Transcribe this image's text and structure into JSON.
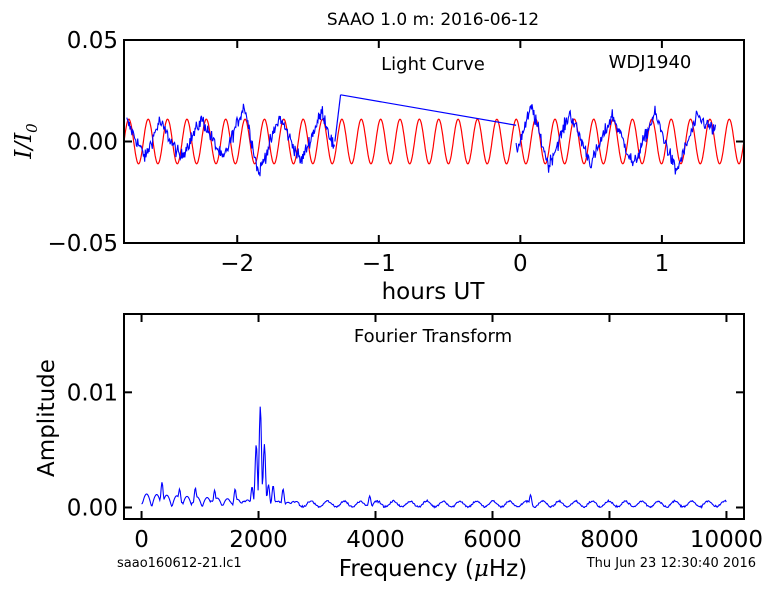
{
  "figure": {
    "title": "SAAO 1.0 m:  2016-06-12",
    "footer_left": "saao160612-21.lc1",
    "footer_right": "Thu Jun 23 12:30:40 2016"
  },
  "colors": {
    "data": "#0000ff",
    "model": "#ff0000",
    "axes": "#000000"
  },
  "chart_data": [
    {
      "type": "line",
      "panel": "light-curve",
      "title": "",
      "annotations": [
        "Light Curve",
        "WDJ1940"
      ],
      "xlabel": "hours UT",
      "ylabel": "I/I0",
      "ylabel_display": {
        "base": "I/I",
        "subscript": "0"
      },
      "xlim": [
        -2.8,
        1.58
      ],
      "ylim": [
        -0.05,
        0.05
      ],
      "xticks": [
        -2,
        -1,
        0,
        1
      ],
      "xtick_labels": [
        "−2",
        "−1",
        "0",
        "1"
      ],
      "yticks": [
        -0.05,
        0.0,
        0.05
      ],
      "ytick_labels": [
        "−0.05",
        "0.00",
        "0.05"
      ],
      "grid": false,
      "series": [
        {
          "role": "observed",
          "color": "#0000ff",
          "segments": [
            [
              -2.78,
              -1.31
            ],
            [
              -0.03,
              1.38
            ]
          ],
          "gap_connector": {
            "x": [
              -1.27,
              -0.03
            ],
            "y": [
              0.023,
              0.008
            ]
          },
          "noise_amplitude": 0.006,
          "points": [
            [
              -2.78,
              0.01
            ],
            [
              -2.65,
              -0.008
            ],
            [
              -2.55,
              0.01
            ],
            [
              -2.4,
              -0.008
            ],
            [
              -2.25,
              0.011
            ],
            [
              -2.1,
              -0.009
            ],
            [
              -1.95,
              0.018
            ],
            [
              -1.85,
              -0.016
            ],
            [
              -1.7,
              0.012
            ],
            [
              -1.55,
              -0.01
            ],
            [
              -1.4,
              0.015
            ],
            [
              -1.31,
              -0.005
            ],
            [
              -0.03,
              -0.005
            ],
            [
              0.08,
              0.017
            ],
            [
              0.2,
              -0.012
            ],
            [
              0.35,
              0.014
            ],
            [
              0.5,
              -0.011
            ],
            [
              0.65,
              0.013
            ],
            [
              0.8,
              -0.012
            ],
            [
              0.95,
              0.014
            ],
            [
              1.1,
              -0.015
            ],
            [
              1.25,
              0.012
            ],
            [
              1.38,
              0.005
            ]
          ]
        },
        {
          "role": "model",
          "color": "#ff0000",
          "function": "sinusoid",
          "amplitude": 0.011,
          "frequency_uHz": 2030,
          "phase_ref_hours": -2.8,
          "x_range": [
            -2.8,
            1.58
          ]
        }
      ]
    },
    {
      "type": "line",
      "panel": "fourier-transform",
      "title": "",
      "annotations": [
        "Fourier Transform"
      ],
      "xlabel": "Frequency (μHz)",
      "xlabel_display": {
        "before": "Frequency (",
        "mu": "μ",
        "after": "Hz)"
      },
      "ylabel": "Amplitude",
      "xlim": [
        -300,
        10300
      ],
      "ylim": [
        -0.001,
        0.0168
      ],
      "xticks": [
        0,
        2000,
        4000,
        6000,
        8000,
        10000
      ],
      "xtick_labels": [
        "0",
        "2000",
        "4000",
        "6000",
        "8000",
        "10000"
      ],
      "yticks": [
        0.0,
        0.01
      ],
      "ytick_labels": [
        "0.00",
        "0.01"
      ],
      "grid": false,
      "series": [
        {
          "role": "amplitude-spectrum",
          "color": "#0000ff",
          "x_range": [
            0,
            10000
          ],
          "noise_level": 0.0005,
          "peaks": [
            {
              "freq": 2030,
              "amp": 0.0088
            },
            {
              "freq": 1960,
              "amp": 0.0055
            },
            {
              "freq": 2100,
              "amp": 0.0055
            },
            {
              "freq": 1890,
              "amp": 0.0018
            },
            {
              "freq": 2170,
              "amp": 0.002
            },
            {
              "freq": 2250,
              "amp": 0.0019
            },
            {
              "freq": 2420,
              "amp": 0.0016
            },
            {
              "freq": 350,
              "amp": 0.0022
            },
            {
              "freq": 650,
              "amp": 0.0016
            },
            {
              "freq": 920,
              "amp": 0.0017
            },
            {
              "freq": 1250,
              "amp": 0.0015
            },
            {
              "freq": 1600,
              "amp": 0.0016
            },
            {
              "freq": 3900,
              "amp": 0.001
            },
            {
              "freq": 6650,
              "amp": 0.0011
            }
          ]
        }
      ]
    }
  ]
}
